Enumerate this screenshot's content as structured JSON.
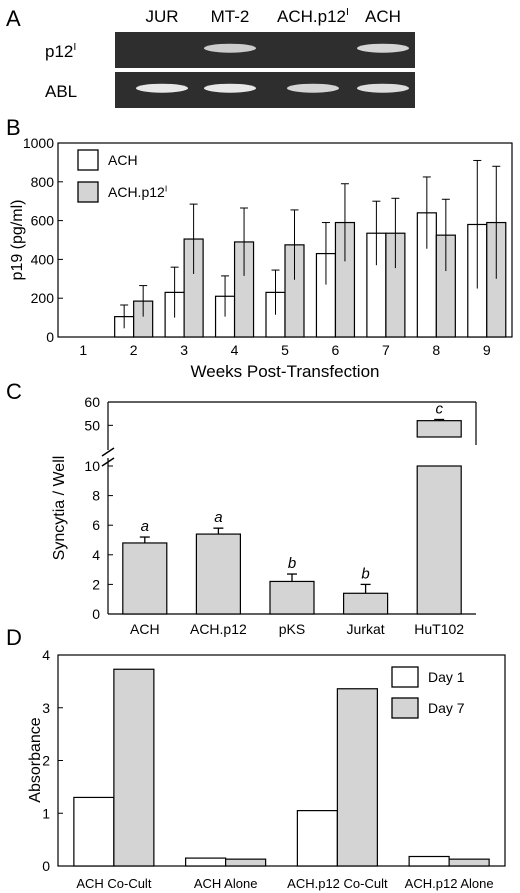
{
  "panel_labels": {
    "a": "A",
    "b": "B",
    "c": "C",
    "d": "D"
  },
  "colors": {
    "gel_background": "#2e2e2e",
    "band": "#e8e8e8",
    "bar_gray": "#d4d4d4",
    "bar_white": "#ffffff",
    "stroke": "#000000"
  },
  "gel": {
    "lanes": [
      "JUR",
      "MT-2",
      "ACH.p12",
      "ACH"
    ],
    "lane_superscripts": [
      "",
      "",
      "I",
      ""
    ],
    "rows": [
      {
        "label": "p12",
        "label_sup": "I",
        "bands": [
          0,
          0.85,
          0,
          0.9
        ]
      },
      {
        "label": "ABL",
        "label_sup": "",
        "bands": [
          1,
          1,
          0.9,
          0.95
        ]
      }
    ]
  },
  "chart_data": [
    {
      "id": "B",
      "type": "bar",
      "xlabel": "Weeks Post-Transfection",
      "ylabel": "p19 (pg/ml)",
      "ylim": [
        0,
        1000
      ],
      "yticks": [
        0,
        200,
        400,
        600,
        800,
        1000
      ],
      "categories": [
        "1",
        "2",
        "3",
        "4",
        "5",
        "6",
        "7",
        "8",
        "9"
      ],
      "legend_position": "top-left",
      "series": [
        {
          "name": "ACH",
          "name_sup": "",
          "fill": "white",
          "values": [
            0,
            105,
            230,
            210,
            230,
            430,
            535,
            640,
            580
          ],
          "errors": [
            0,
            60,
            130,
            105,
            115,
            160,
            165,
            185,
            330
          ]
        },
        {
          "name": "ACH.p12",
          "name_sup": "I",
          "fill": "gray",
          "values": [
            0,
            185,
            505,
            490,
            475,
            590,
            535,
            525,
            590
          ],
          "errors": [
            0,
            80,
            180,
            175,
            180,
            200,
            180,
            185,
            290
          ]
        }
      ]
    },
    {
      "id": "C",
      "type": "bar",
      "ylabel": "Syncytia / Well",
      "ylim_lower": [
        0,
        10
      ],
      "ylim_upper": [
        45,
        60
      ],
      "yticks_lower": [
        0,
        2,
        4,
        6,
        8,
        10
      ],
      "yticks_upper": [
        50,
        60
      ],
      "categories": [
        "ACH",
        "ACH.p12",
        "pKS",
        "Jurkat",
        "HuT102"
      ],
      "values": [
        4.8,
        5.4,
        2.2,
        1.4,
        52
      ],
      "errors": [
        0.4,
        0.4,
        0.5,
        0.6,
        0.5
      ],
      "annotations": [
        "a",
        "a",
        "b",
        "b",
        "c"
      ]
    },
    {
      "id": "D",
      "type": "bar",
      "ylabel": "Absorbance",
      "ylim": [
        0,
        4
      ],
      "yticks": [
        0,
        1,
        2,
        3,
        4
      ],
      "categories": [
        "ACH Co-Cult",
        "ACH Alone",
        "ACH.p12 Co-Cult",
        "ACH.p12 Alone"
      ],
      "legend_position": "top-right",
      "series": [
        {
          "name": "Day 1",
          "fill": "white",
          "values": [
            1.3,
            0.15,
            1.05,
            0.18
          ]
        },
        {
          "name": "Day 7",
          "fill": "gray",
          "values": [
            3.73,
            0.13,
            3.36,
            0.13
          ]
        }
      ]
    }
  ]
}
